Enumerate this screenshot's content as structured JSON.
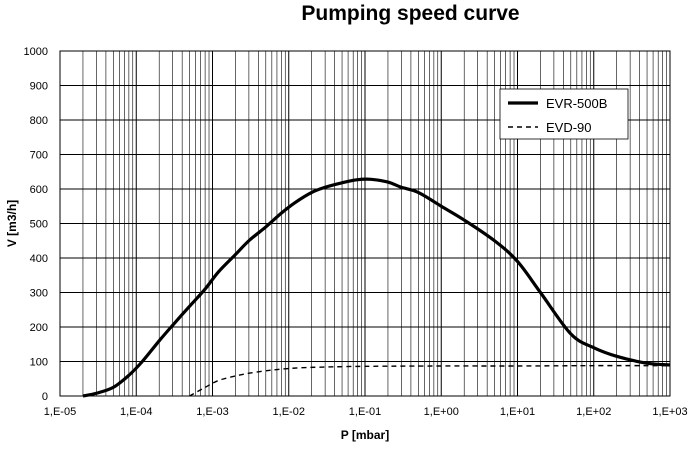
{
  "chart_data": {
    "type": "line",
    "title": "Pumping speed curve",
    "xlabel": "P [mbar]",
    "ylabel": "V [m3/h]",
    "xscale": "log",
    "xlim": [
      1e-05,
      1000
    ],
    "ylim": [
      0,
      1000
    ],
    "x_ticks": [
      "1,E-05",
      "1,E-04",
      "1,E-03",
      "1,E-02",
      "1,E-01",
      "1,E+00",
      "1,E+01",
      "1,E+02",
      "1,E+03"
    ],
    "y_ticks": [
      "0",
      "100",
      "200",
      "300",
      "400",
      "500",
      "600",
      "700",
      "800",
      "900",
      "1000"
    ],
    "grid": true,
    "legend_position": "top-right",
    "series": [
      {
        "name": "EVR-500B",
        "style": "solid",
        "x": [
          2e-05,
          3e-05,
          5e-05,
          8e-05,
          0.00012,
          0.0002,
          0.0003,
          0.0005,
          0.0008,
          0.0012,
          0.002,
          0.003,
          0.005,
          0.008,
          0.012,
          0.02,
          0.03,
          0.05,
          0.08,
          0.12,
          0.2,
          0.3,
          0.5,
          1,
          2,
          5,
          10,
          20,
          50,
          100,
          200,
          500,
          1000
        ],
        "y": [
          0,
          8,
          25,
          60,
          100,
          160,
          205,
          260,
          310,
          360,
          410,
          450,
          490,
          530,
          560,
          590,
          605,
          618,
          627,
          628,
          620,
          605,
          590,
          550,
          510,
          450,
          390,
          300,
          180,
          140,
          115,
          95,
          90
        ]
      },
      {
        "name": "EVD-90",
        "style": "dashed",
        "x": [
          0.0005,
          0.0008,
          0.0012,
          0.002,
          0.003,
          0.005,
          0.008,
          0.015,
          0.03,
          0.1,
          1,
          10,
          100,
          1000
        ],
        "y": [
          0,
          25,
          45,
          58,
          66,
          73,
          78,
          82,
          84,
          86,
          87,
          87,
          88,
          88
        ]
      }
    ]
  }
}
